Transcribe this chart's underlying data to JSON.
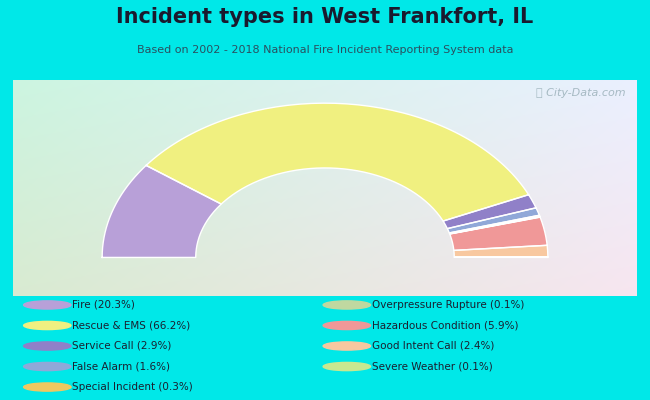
{
  "title": "Incident types in West Frankfort, IL",
  "subtitle": "Based on 2002 - 2018 National Fire Incident Reporting System data",
  "background_color": "#00E8E8",
  "watermark": "ⓘ City-Data.com",
  "segments": [
    {
      "label": "Fire (20.3%)",
      "value": 20.3,
      "color": "#b8a0d8"
    },
    {
      "label": "Rescue & EMS (66.2%)",
      "value": 66.2,
      "color": "#f0f080"
    },
    {
      "label": "Service Call (2.9%)",
      "value": 2.9,
      "color": "#9080c8"
    },
    {
      "label": "False Alarm (1.6%)",
      "value": 1.6,
      "color": "#90a8d8"
    },
    {
      "label": "Special Incident (0.3%)",
      "value": 0.3,
      "color": "#f0c860"
    },
    {
      "label": "Overpressure Rupture (0.1%)",
      "value": 0.1,
      "color": "#c0d8a0"
    },
    {
      "label": "Hazardous Condition (5.9%)",
      "value": 5.9,
      "color": "#f09898"
    },
    {
      "label": "Good Intent Call (2.4%)",
      "value": 2.4,
      "color": "#f8c8a0"
    },
    {
      "label": "Severe Weather (0.1%)",
      "value": 0.1,
      "color": "#c8e890"
    }
  ],
  "legend_left": [
    {
      "label": "Fire (20.3%)",
      "color": "#b8a0d8"
    },
    {
      "label": "Rescue & EMS (66.2%)",
      "color": "#f0f080"
    },
    {
      "label": "Service Call (2.9%)",
      "color": "#9080c8"
    },
    {
      "label": "False Alarm (1.6%)",
      "color": "#90a8d8"
    },
    {
      "label": "Special Incident (0.3%)",
      "color": "#f0c860"
    }
  ],
  "legend_right": [
    {
      "label": "Overpressure Rupture (0.1%)",
      "color": "#c0d8a0"
    },
    {
      "label": "Hazardous Condition (5.9%)",
      "color": "#f09898"
    },
    {
      "label": "Good Intent Call (2.4%)",
      "color": "#f8c8a0"
    },
    {
      "label": "Severe Weather (0.1%)",
      "color": "#c8e890"
    }
  ]
}
